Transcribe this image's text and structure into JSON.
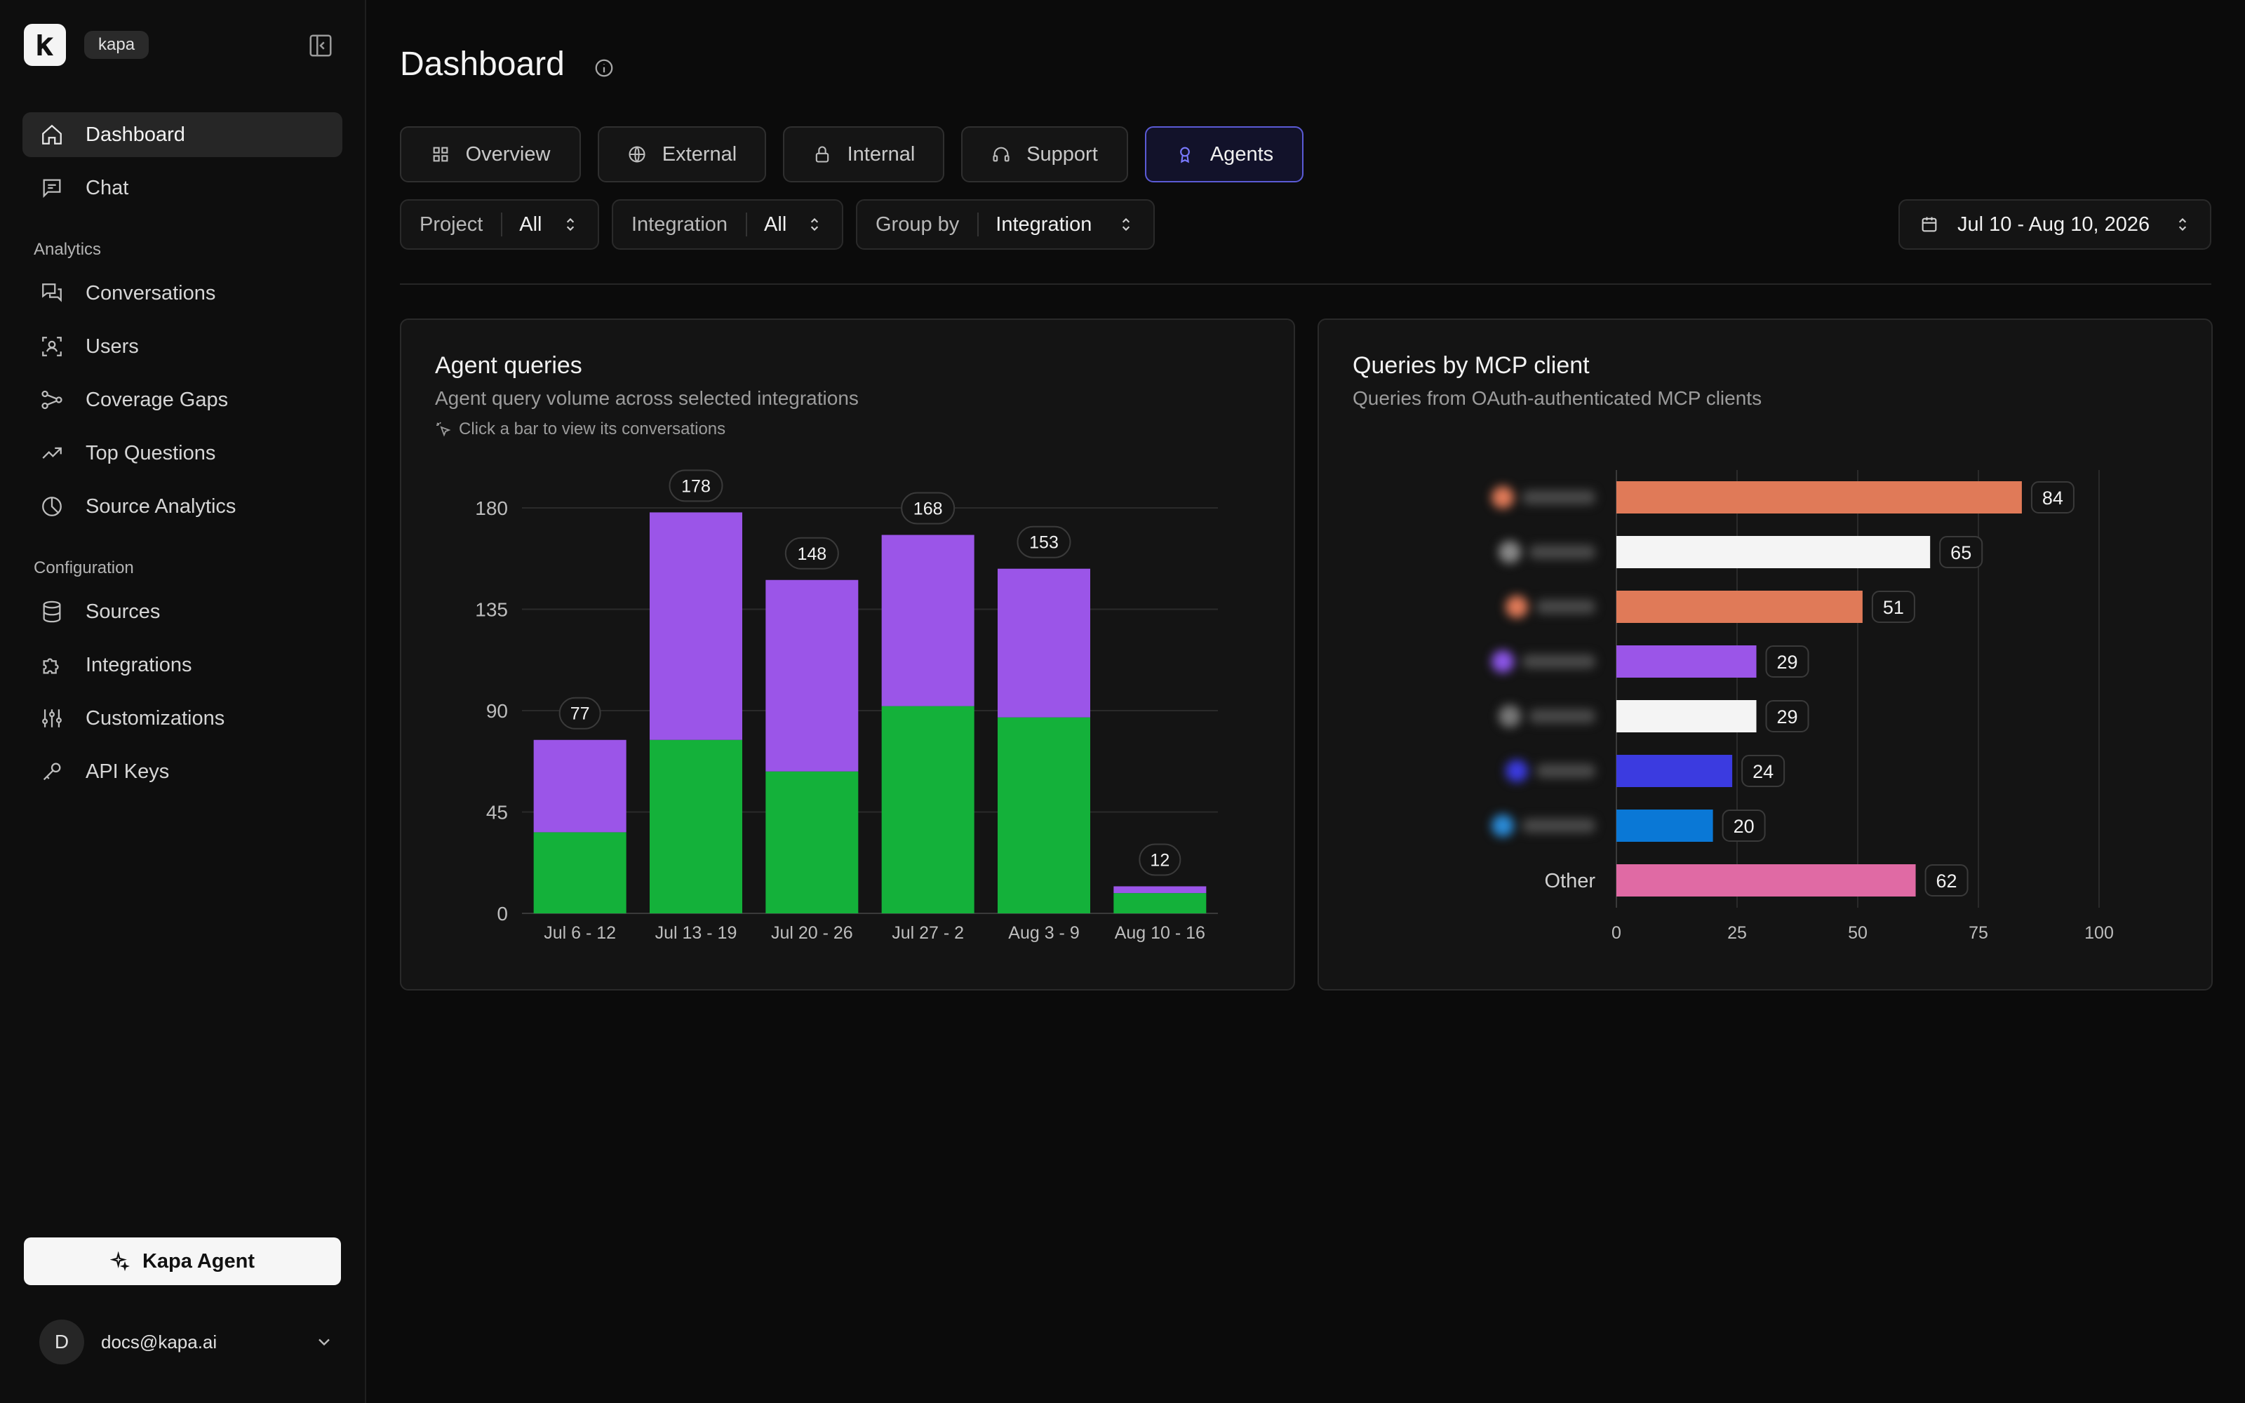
{
  "sidebar": {
    "workspace": "kapa",
    "nav": [
      {
        "label": "Dashboard",
        "icon": "home-icon",
        "active": true
      },
      {
        "label": "Chat",
        "icon": "chat-icon"
      }
    ],
    "analytics_label": "Analytics",
    "analytics": [
      {
        "label": "Conversations",
        "icon": "conversations-icon"
      },
      {
        "label": "Users",
        "icon": "users-icon"
      },
      {
        "label": "Coverage Gaps",
        "icon": "coverage-icon"
      },
      {
        "label": "Top Questions",
        "icon": "trending-icon"
      },
      {
        "label": "Source Analytics",
        "icon": "pie-icon"
      }
    ],
    "configuration_label": "Configuration",
    "configuration": [
      {
        "label": "Sources",
        "icon": "database-icon"
      },
      {
        "label": "Integrations",
        "icon": "puzzle-icon"
      },
      {
        "label": "Customizations",
        "icon": "sliders-icon"
      },
      {
        "label": "API Keys",
        "icon": "key-icon"
      }
    ],
    "agent_button": "Kapa Agent",
    "user": {
      "initial": "D",
      "email": "docs@kapa.ai"
    }
  },
  "header": {
    "title": "Dashboard"
  },
  "tabs": [
    {
      "label": "Overview",
      "icon": "grid-icon"
    },
    {
      "label": "External",
      "icon": "globe-icon"
    },
    {
      "label": "Internal",
      "icon": "lock-icon"
    },
    {
      "label": "Support",
      "icon": "headset-icon"
    },
    {
      "label": "Agents",
      "icon": "agent-icon",
      "active": true
    }
  ],
  "filters": {
    "project": {
      "label": "Project",
      "value": "All"
    },
    "integration": {
      "label": "Integration",
      "value": "All"
    },
    "group_by": {
      "label": "Group by",
      "value": "Integration"
    },
    "date_range": "Jul 10 - Aug 10, 2026"
  },
  "cards": {
    "agent_queries": {
      "title": "Agent queries",
      "subtitle": "Agent query volume across selected integrations",
      "hint": "Click a bar to view its conversations"
    },
    "mcp_clients": {
      "title": "Queries by MCP client",
      "subtitle": "Queries from OAuth-authenticated MCP clients"
    }
  },
  "chart_data": [
    {
      "type": "bar",
      "stacked": true,
      "categories": [
        "Jul 6 - 12",
        "Jul 13 - 19",
        "Jul 20 - 26",
        "Jul 27 - 2",
        "Aug 3 - 9",
        "Aug 10 - 16"
      ],
      "series": [
        {
          "values": [
            36,
            77,
            63,
            92,
            87,
            9
          ],
          "color": "#14b13a"
        },
        {
          "values": [
            41,
            101,
            85,
            76,
            66,
            3
          ],
          "color": "#9b55e8"
        }
      ],
      "totals": [
        "77",
        "178",
        "148",
        "168",
        "153",
        "12"
      ],
      "ylim": [
        0,
        180
      ],
      "yticks": [
        "0",
        "45",
        "90",
        "135",
        "180"
      ],
      "grid": true
    },
    {
      "type": "bar",
      "orientation": "horizontal",
      "categories": [
        "",
        "",
        "",
        "",
        "",
        "",
        "",
        "Other"
      ],
      "values": [
        84,
        65,
        51,
        29,
        29,
        24,
        20,
        62
      ],
      "value_labels": [
        "84",
        "65",
        "51",
        "29",
        "29",
        "24",
        "20",
        "62"
      ],
      "colors": [
        "#e07a58",
        "#f4f4f4",
        "#e07a58",
        "#9b55e8",
        "#f4f4f4",
        "#3b3be0",
        "#0a78d6",
        "#e06aa4"
      ],
      "icon_colors": [
        "#e07a58",
        "#888888",
        "#e07a58",
        "#8b55e8",
        "#777777",
        "#3b3be0",
        "#2a8ad6",
        ""
      ],
      "xlim": [
        0,
        100
      ],
      "xticks": [
        "0",
        "25",
        "50",
        "75",
        "100"
      ],
      "grid": true
    }
  ]
}
